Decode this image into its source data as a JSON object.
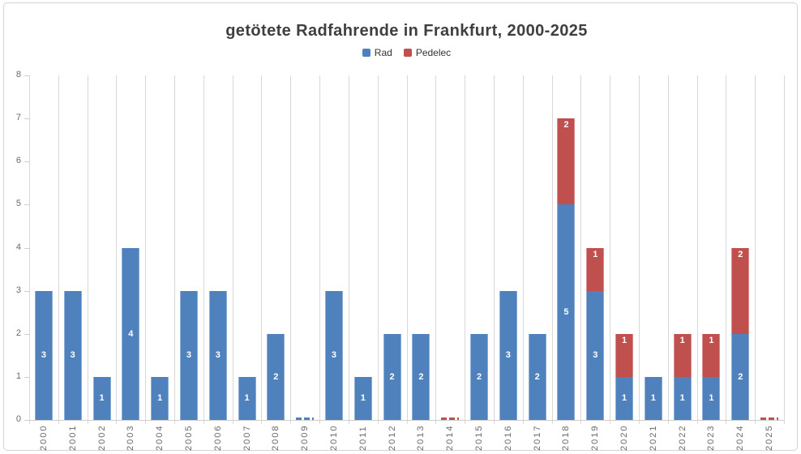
{
  "title": "getötete Radfahrende in Frankfurt, 2000-2025",
  "legend": {
    "items": [
      {
        "label": "Rad",
        "color": "#4f81bd"
      },
      {
        "label": "Pedelec",
        "color": "#c0504d"
      }
    ]
  },
  "colors": {
    "rad": "#4f81bd",
    "pedelec": "#c0504d",
    "grid": "#d8d8d8",
    "axis_line": "#cfcfcf",
    "axis_text": "#6a6a6a",
    "title_text": "#3f3f3f",
    "card_border": "#d4d4d4",
    "value_label_text": "#ffffff"
  },
  "chart_data": {
    "type": "bar",
    "stacked": true,
    "title": "getötete Radfahrende in Frankfurt, 2000-2025",
    "categories": [
      "2000",
      "2001",
      "2002",
      "2003",
      "2004",
      "2005",
      "2006",
      "2007",
      "2008",
      "2009",
      "2010",
      "2011",
      "2012",
      "2013",
      "2014",
      "2015",
      "2016",
      "2017",
      "2018",
      "2019",
      "2020",
      "2021",
      "2022",
      "2023",
      "2024",
      "2025"
    ],
    "series": [
      {
        "name": "Rad",
        "color": "#4f81bd",
        "values": [
          3,
          3,
          1,
          4,
          1,
          3,
          3,
          1,
          2,
          0,
          3,
          1,
          2,
          2,
          0,
          2,
          3,
          2,
          5,
          3,
          1,
          1,
          1,
          1,
          2,
          0
        ]
      },
      {
        "name": "Pedelec",
        "color": "#c0504d",
        "values": [
          0,
          0,
          0,
          0,
          0,
          0,
          0,
          0,
          0,
          0,
          0,
          0,
          0,
          0,
          0,
          0,
          0,
          0,
          2,
          1,
          1,
          0,
          1,
          1,
          2,
          0
        ]
      }
    ],
    "totals": [
      3,
      3,
      1,
      4,
      1,
      3,
      3,
      1,
      2,
      0,
      3,
      1,
      2,
      2,
      0,
      2,
      3,
      2,
      7,
      4,
      2,
      1,
      2,
      2,
      4,
      0
    ],
    "zero_value_slivers": [
      {
        "category": "2009",
        "series": "Rad"
      },
      {
        "category": "2014",
        "series": "Pedelec"
      },
      {
        "category": "2025",
        "series": "Pedelec"
      }
    ],
    "xlabel": "",
    "ylabel": "",
    "ylim": [
      0,
      8
    ],
    "yticks": [
      "0",
      "1",
      "2",
      "3",
      "4",
      "5",
      "6",
      "7",
      "8"
    ],
    "grid": "vertical",
    "legend_position": "top-center",
    "data_labels": "white values inside segments; Rad centered, Pedelec near segment top"
  }
}
